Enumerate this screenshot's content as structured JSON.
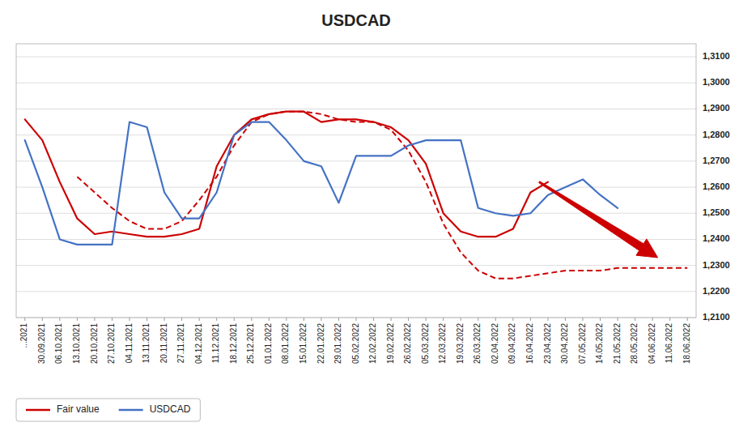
{
  "chart_data": {
    "type": "line",
    "title": "USDCAD",
    "categories": [
      "...2021",
      "30.09.2021",
      "06.10.2021",
      "13.10.2021",
      "20.10.2021",
      "27.10.2021",
      "04.11.2021",
      "13.11.2021",
      "20.11.2021",
      "27.11.2021",
      "04.12.2021",
      "11.12.2021",
      "18.12.2021",
      "25.12.2021",
      "01.01.2022",
      "08.01.2022",
      "15.01.2022",
      "22.01.2022",
      "29.01.2022",
      "05.02.2022",
      "12.02.2022",
      "19.02.2022",
      "26.02.2022",
      "05.03.2022",
      "12.03.2022",
      "19.03.2022",
      "26.03.2022",
      "02.04.2022",
      "09.04.2022",
      "16.04.2022",
      "23.04.2022",
      "30.04.2022",
      "07.05.2022",
      "14.05.2022",
      "21.05.2022",
      "28.05.2022",
      "04.06.2022",
      "11.06.2022",
      "18.06.2022"
    ],
    "series": [
      {
        "name": "Fair value",
        "color": "#cc0000",
        "line_style": "solid",
        "values": [
          1.286,
          1.278,
          1.262,
          1.248,
          1.242,
          1.243,
          1.242,
          1.241,
          1.241,
          1.242,
          1.244,
          1.268,
          1.28,
          1.286,
          1.288,
          1.289,
          1.289,
          1.285,
          1.286,
          1.286,
          1.285,
          1.283,
          1.278,
          1.269,
          1.25,
          1.243,
          1.241,
          1.241,
          1.244,
          1.258,
          1.262,
          null,
          null,
          null,
          null,
          null,
          null,
          null,
          null
        ]
      },
      {
        "name": "Fair value",
        "color": "#cc0000",
        "line_style": "dashed",
        "values": [
          null,
          null,
          null,
          1.264,
          1.258,
          1.252,
          1.247,
          1.244,
          1.244,
          1.247,
          1.255,
          1.264,
          1.276,
          1.285,
          1.288,
          1.289,
          1.289,
          1.288,
          1.286,
          1.285,
          1.285,
          1.282,
          1.274,
          1.262,
          1.246,
          1.235,
          1.228,
          1.225,
          1.225,
          1.226,
          1.227,
          1.228,
          1.228,
          1.228,
          1.229,
          1.229,
          1.229,
          1.229,
          1.229
        ]
      },
      {
        "name": "USDCAD",
        "color": "#4472c4",
        "line_style": "solid",
        "values": [
          1.278,
          1.26,
          1.24,
          1.238,
          1.238,
          1.238,
          1.285,
          1.283,
          1.258,
          1.248,
          1.248,
          1.258,
          1.28,
          1.285,
          1.285,
          1.278,
          1.27,
          1.268,
          1.254,
          1.272,
          1.272,
          1.272,
          1.276,
          1.278,
          1.278,
          1.278,
          1.252,
          1.25,
          1.249,
          1.25,
          1.257,
          1.26,
          1.263,
          1.257,
          1.252,
          null,
          null,
          null,
          null
        ]
      }
    ],
    "ylim": [
      1.21,
      1.315
    ],
    "yticks": [
      {
        "value": 1.21,
        "label": "1,2100"
      },
      {
        "value": 1.22,
        "label": "1,2200"
      },
      {
        "value": 1.23,
        "label": "1,2300"
      },
      {
        "value": 1.24,
        "label": "1,2400"
      },
      {
        "value": 1.25,
        "label": "1,2500"
      },
      {
        "value": 1.26,
        "label": "1,2600"
      },
      {
        "value": 1.27,
        "label": "1,2700"
      },
      {
        "value": 1.28,
        "label": "1,2800"
      },
      {
        "value": 1.29,
        "label": "1,2900"
      },
      {
        "value": 1.3,
        "label": "1,3000"
      },
      {
        "value": 1.31,
        "label": "1,3100"
      }
    ],
    "grid": true,
    "legend": "lower left",
    "annotations": [
      {
        "type": "arrow",
        "x_start": 29.5,
        "y_start": 1.262,
        "x_end": 36.3,
        "y_end": 1.233,
        "color": "#cc0000"
      }
    ]
  }
}
